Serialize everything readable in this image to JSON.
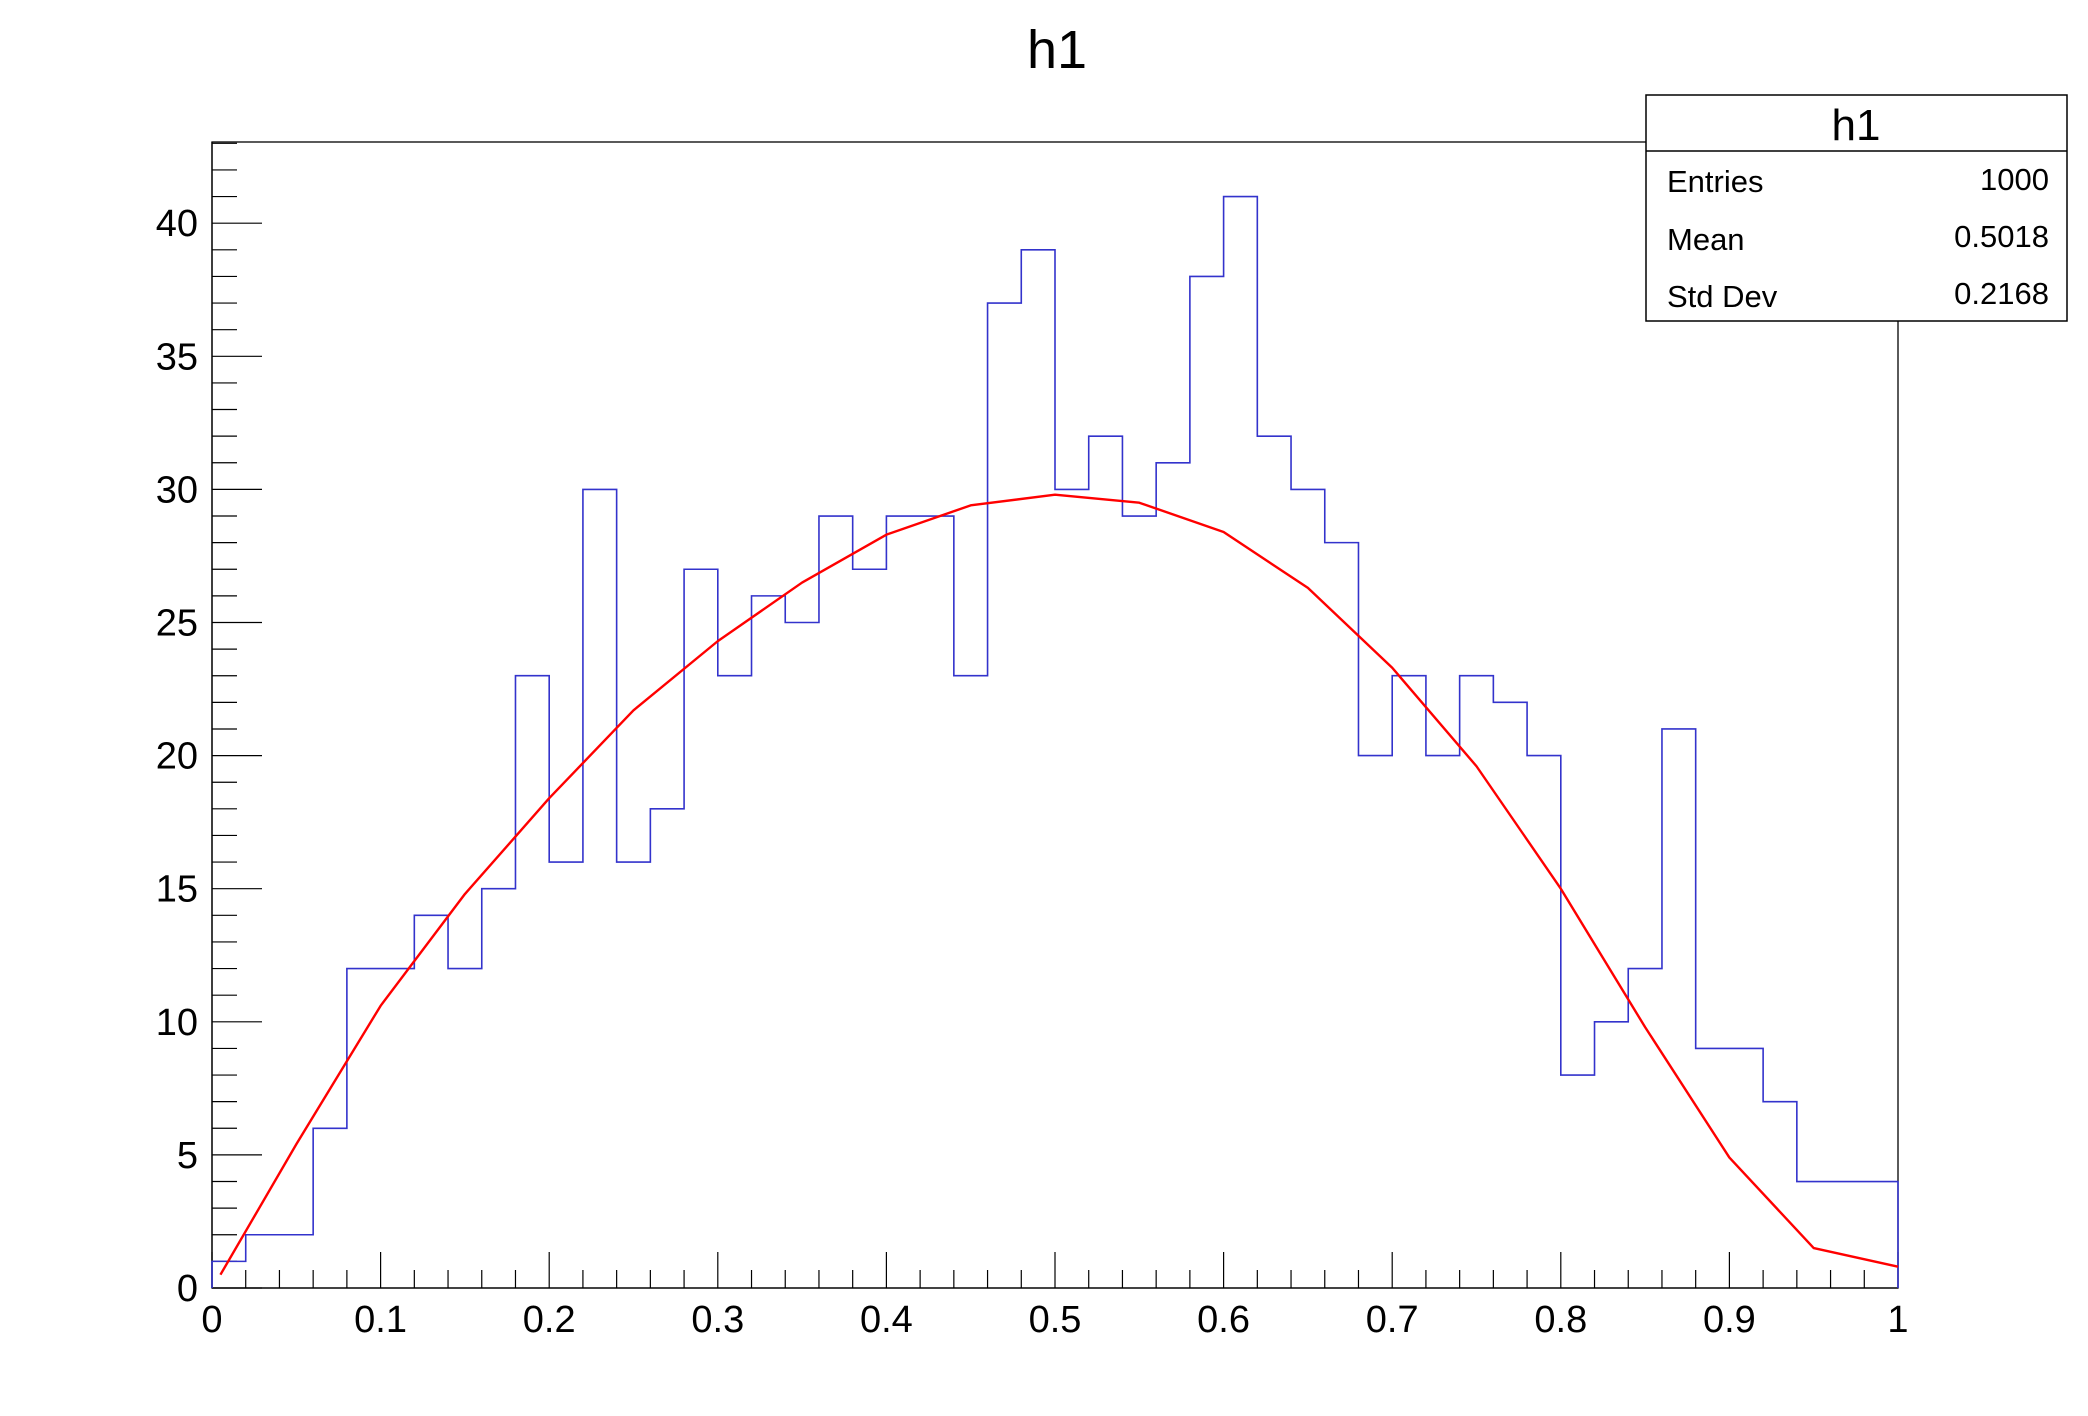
{
  "chart_data": {
    "type": "histogram",
    "title": "h1",
    "xlabel": "",
    "ylabel": "",
    "xlim": [
      0,
      1
    ],
    "ylim": [
      0,
      43.05
    ],
    "x_ticks": [
      "0",
      "0.1",
      "0.2",
      "0.3",
      "0.4",
      "0.5",
      "0.6",
      "0.7",
      "0.8",
      "0.9",
      "1"
    ],
    "y_ticks": [
      "0",
      "5",
      "10",
      "15",
      "20",
      "25",
      "30",
      "35",
      "40"
    ],
    "bin_edges_start": 0,
    "bin_width": 0.02,
    "bin_counts": [
      1,
      2,
      2,
      6,
      12,
      12,
      14,
      12,
      15,
      23,
      16,
      30,
      16,
      18,
      27,
      23,
      26,
      25,
      29,
      27,
      29,
      29,
      23,
      37,
      39,
      30,
      32,
      29,
      31,
      38,
      41,
      32,
      30,
      28,
      20,
      23,
      20,
      23,
      22,
      20,
      8,
      10,
      12,
      21,
      9,
      9,
      7,
      4,
      4,
      4
    ],
    "series": [
      {
        "type": "step",
        "color": "#3333cc"
      },
      {
        "type": "line",
        "color": "#ff0000",
        "x": [
          0.005,
          0.05,
          0.1,
          0.15,
          0.2,
          0.25,
          0.3,
          0.35,
          0.4,
          0.45,
          0.5,
          0.55,
          0.6,
          0.65,
          0.7,
          0.75,
          0.8,
          0.85,
          0.9,
          0.95,
          1.0
        ],
        "y": [
          0.5,
          5.4,
          10.6,
          14.8,
          18.4,
          21.7,
          24.3,
          26.5,
          28.3,
          29.4,
          29.8,
          29.5,
          28.4,
          26.3,
          23.3,
          19.6,
          15.0,
          9.8,
          4.9,
          1.5,
          0.8
        ]
      }
    ],
    "stats_box": {
      "title": "h1",
      "rows": [
        {
          "label": "Entries",
          "value": "1000"
        },
        {
          "label": "Mean",
          "value": "0.5018"
        },
        {
          "label": "Std Dev",
          "value": "0.2168"
        }
      ]
    },
    "grid": false
  }
}
